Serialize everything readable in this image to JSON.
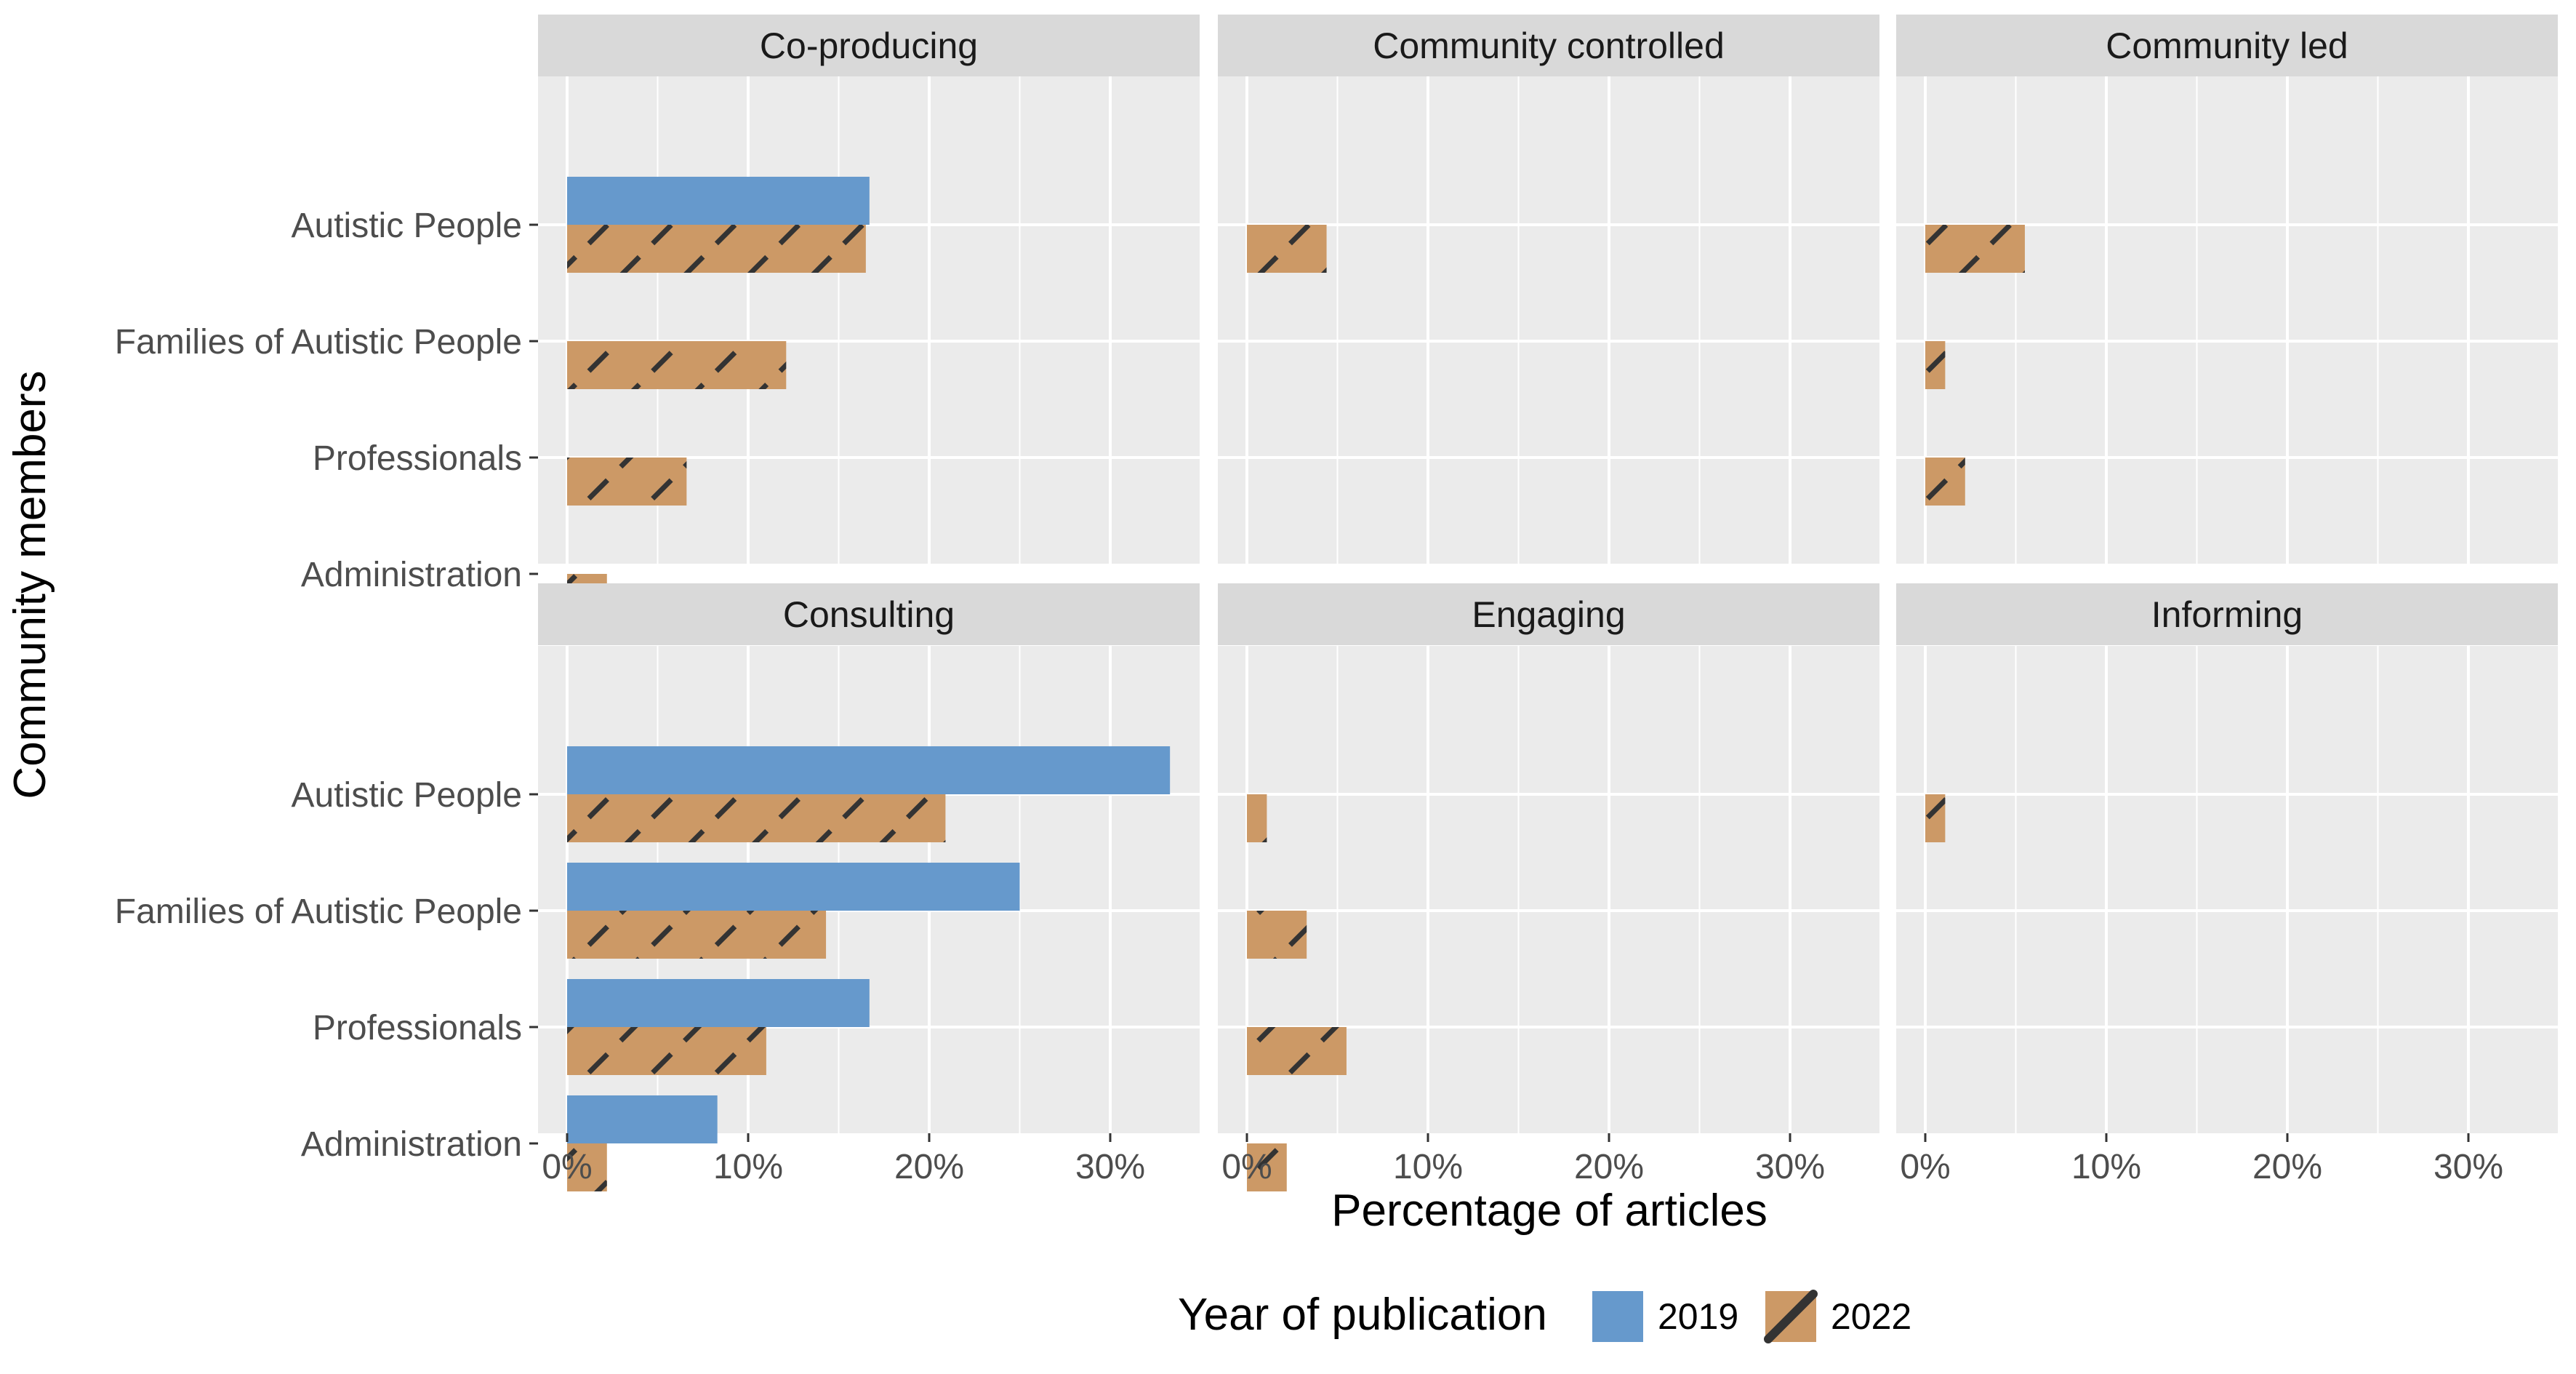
{
  "chart_data": {
    "type": "bar",
    "orientation": "horizontal",
    "faceted": true,
    "xlabel": "Percentage of articles",
    "ylabel": "Community members",
    "xlim": [
      0,
      34
    ],
    "x_ticks": [
      0,
      10,
      20,
      30
    ],
    "x_tick_labels": [
      "0%",
      "10%",
      "20%",
      "30%"
    ],
    "categories": [
      "Autistic People",
      "Families of Autistic People",
      "Professionals",
      "Administration"
    ],
    "legend": {
      "title": "Year of publication",
      "position": "bottom",
      "entries": [
        {
          "label": "2019",
          "color": "#6699cc",
          "hatched": false
        },
        {
          "label": "2022",
          "color": "#cc9966",
          "hatched": true
        }
      ]
    },
    "series_order": [
      "2019",
      "2022"
    ],
    "panels": [
      {
        "title": "Co-producing",
        "series": [
          {
            "name": "2019",
            "values": [
              16.7,
              0,
              0,
              0
            ]
          },
          {
            "name": "2022",
            "values": [
              16.5,
              12.1,
              6.6,
              2.2
            ]
          }
        ]
      },
      {
        "title": "Community controlled",
        "series": [
          {
            "name": "2019",
            "values": [
              0,
              0,
              0,
              0
            ]
          },
          {
            "name": "2022",
            "values": [
              4.4,
              0,
              0,
              0
            ]
          }
        ]
      },
      {
        "title": "Community led",
        "series": [
          {
            "name": "2019",
            "values": [
              0,
              0,
              0,
              0
            ]
          },
          {
            "name": "2022",
            "values": [
              5.5,
              1.1,
              2.2,
              0
            ]
          }
        ]
      },
      {
        "title": "Consulting",
        "series": [
          {
            "name": "2019",
            "values": [
              33.3,
              25.0,
              16.7,
              8.3
            ]
          },
          {
            "name": "2022",
            "values": [
              20.9,
              14.3,
              11.0,
              2.2
            ]
          }
        ]
      },
      {
        "title": "Engaging",
        "series": [
          {
            "name": "2019",
            "values": [
              0,
              0,
              0,
              0
            ]
          },
          {
            "name": "2022",
            "values": [
              1.1,
              3.3,
              5.5,
              2.2
            ]
          }
        ]
      },
      {
        "title": "Informing",
        "series": [
          {
            "name": "2019",
            "values": [
              0,
              0,
              0,
              0
            ]
          },
          {
            "name": "2022",
            "values": [
              1.1,
              0,
              0,
              0
            ]
          }
        ]
      }
    ],
    "grid": true,
    "colors": {
      "series_2019": "#6699cc",
      "series_2022": "#cc9966",
      "hatch": "#333333",
      "panel_bg": "#ebebeb",
      "strip_bg": "#d9d9d9",
      "grid": "#ffffff"
    }
  }
}
